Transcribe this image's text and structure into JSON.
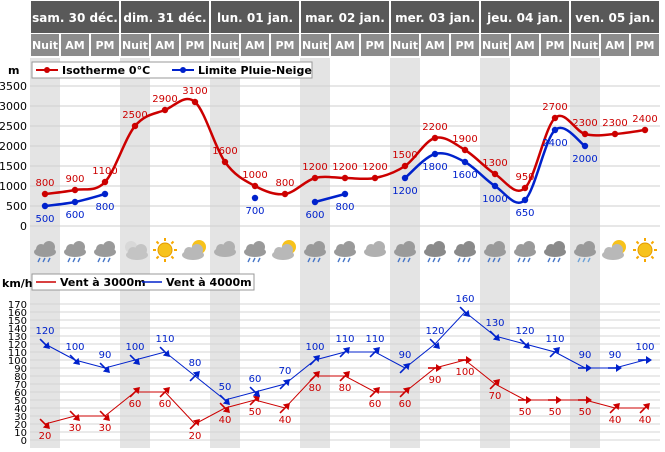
{
  "days": [
    "sam. 30 déc.",
    "dim. 31 déc.",
    "lun. 01 jan.",
    "mar. 02 jan.",
    "mer. 03 jan.",
    "jeu. 04 jan.",
    "ven. 05 jan."
  ],
  "periods": [
    "Nuit",
    "AM",
    "PM"
  ],
  "colors": {
    "header_bg": "#595959",
    "subheader_bg": "#8c8c8c",
    "night_col": "#e4e4e4",
    "red": "#cc0000",
    "blue": "#0022cc"
  },
  "weather_icons": [
    "rain-cloud-icon",
    "rain-cloud-icon",
    "rain-cloud-icon",
    "moon-cloud-icon",
    "sun-icon",
    "sun-cloud-icon",
    "cloud-icon",
    "rain-cloud-icon",
    "sun-cloud-icon",
    "rain-cloud-icon",
    "rain-cloud-icon",
    "cloud-icon",
    "rain-cloud-icon",
    "storm-cloud-icon",
    "storm-cloud-icon",
    "rain-cloud-icon",
    "rain-cloud-icon",
    "storm-cloud-icon",
    "snow-cloud-icon",
    "sun-cloud-icon",
    "sun-icon"
  ],
  "chart_data": [
    {
      "type": "line",
      "ylabel": "m",
      "ylim": [
        0,
        3500
      ],
      "yticks": [
        0,
        500,
        1000,
        1500,
        2000,
        2500,
        3000,
        3500
      ],
      "grid": true,
      "legend_position": "top-left",
      "series": [
        {
          "name": "Isotherme 0°C",
          "color": "#cc0000",
          "values": [
            800,
            900,
            1100,
            2500,
            2900,
            3100,
            1600,
            1000,
            800,
            1200,
            1200,
            1200,
            1500,
            2200,
            1900,
            1300,
            950,
            2700,
            2300,
            2300,
            2400
          ]
        },
        {
          "name": "Limite Pluie-Neige",
          "color": "#0022cc",
          "values": [
            500,
            600,
            800,
            null,
            null,
            null,
            null,
            700,
            null,
            600,
            800,
            null,
            1200,
            1800,
            1600,
            1000,
            650,
            2400,
            2000,
            null,
            null
          ]
        }
      ]
    },
    {
      "type": "line",
      "ylabel": "km/h",
      "ylim": [
        0,
        170
      ],
      "yticks": [
        0,
        10,
        20,
        30,
        40,
        50,
        60,
        70,
        80,
        90,
        100,
        110,
        120,
        130,
        140,
        150,
        160,
        170
      ],
      "grid": true,
      "legend_position": "top-left",
      "series": [
        {
          "name": "Vent à 3000m",
          "color": "#cc0000",
          "values": [
            20,
            30,
            30,
            60,
            60,
            20,
            40,
            50,
            40,
            80,
            80,
            60,
            60,
            90,
            100,
            70,
            50,
            50,
            50,
            40,
            40
          ],
          "directions": [
            315,
            315,
            315,
            45,
            45,
            45,
            315,
            45,
            45,
            45,
            45,
            45,
            45,
            0,
            0,
            45,
            0,
            0,
            0,
            45,
            45
          ]
        },
        {
          "name": "Vent à 4000m",
          "color": "#0022cc",
          "values": [
            120,
            100,
            90,
            100,
            110,
            80,
            50,
            60,
            70,
            100,
            110,
            110,
            90,
            120,
            160,
            130,
            120,
            110,
            90,
            90,
            100
          ],
          "directions": [
            315,
            315,
            315,
            315,
            315,
            45,
            315,
            315,
            45,
            45,
            45,
            45,
            45,
            315,
            315,
            315,
            315,
            45,
            0,
            0,
            0
          ]
        }
      ]
    }
  ]
}
